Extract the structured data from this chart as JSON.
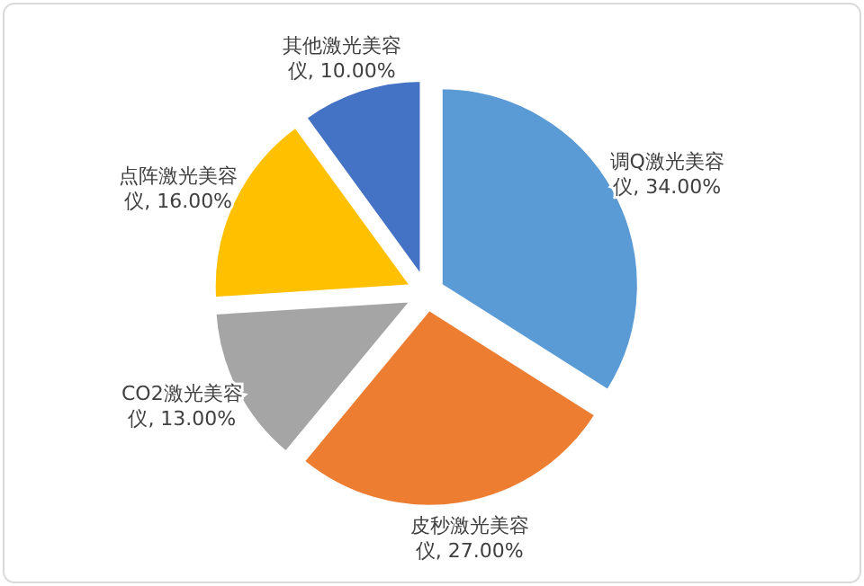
{
  "chart_data": {
    "type": "pie",
    "categories": [
      "调Q激光美容仪",
      "皮秒激光美容仪",
      "CO2激光美容仪",
      "点阵激光美容仪",
      "其他激光美容仪"
    ],
    "values": [
      34,
      27,
      13,
      16,
      10
    ],
    "value_labels": [
      "34.00%",
      "27.00%",
      "13.00%",
      "16.00%",
      "10.00%"
    ],
    "colors": [
      "#5b9bd5",
      "#ed7d31",
      "#a5a5a5",
      "#ffc000",
      "#4472c4"
    ]
  }
}
